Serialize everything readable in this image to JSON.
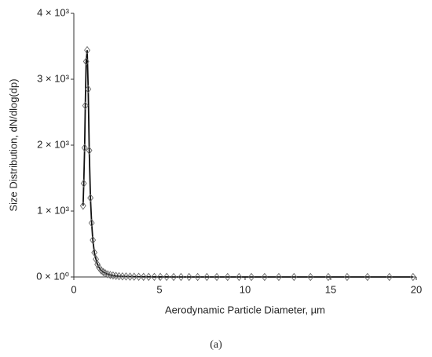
{
  "chart_data": {
    "type": "line",
    "x_label": "Aerodynamic Particle Diameter, µm",
    "y_label": "Size Distribution, dN/dlog(dp)",
    "caption": "(a)",
    "x": [
      0.54,
      0.58,
      0.63,
      0.67,
      0.72,
      0.78,
      0.84,
      0.9,
      0.97,
      1.04,
      1.11,
      1.2,
      1.29,
      1.38,
      1.48,
      1.6,
      1.72,
      1.84,
      1.98,
      2.13,
      2.29,
      2.46,
      2.64,
      2.84,
      3.05,
      3.28,
      3.52,
      3.79,
      4.07,
      4.37,
      4.7,
      5.05,
      5.42,
      5.83,
      6.26,
      6.73,
      7.23,
      7.77,
      8.35,
      8.98,
      9.65,
      10.37,
      11.14,
      11.97,
      12.86,
      13.82,
      14.86,
      15.96,
      17.15,
      18.43,
      19.81
    ],
    "series": [
      {
        "name": "dN/dlog(dp)",
        "color": "#111111",
        "marker_color": "#666666",
        "values": [
          1080,
          1420,
          1960,
          2600,
          3270,
          3440,
          2850,
          1920,
          1200,
          820,
          560,
          370,
          270,
          190,
          140,
          100,
          75,
          55,
          40,
          30,
          22,
          16,
          12,
          9,
          7,
          5,
          4,
          3,
          2,
          2,
          1,
          1,
          1,
          0,
          0,
          0,
          0,
          0,
          0,
          0,
          0,
          0,
          0,
          0,
          0,
          0,
          0,
          0,
          0,
          0,
          0
        ]
      }
    ],
    "xlim": [
      0,
      20
    ],
    "xticks": [
      0,
      5,
      10,
      15,
      20
    ],
    "ylim": [
      0,
      4000
    ],
    "yticks": [
      {
        "value": 0,
        "label": "0 × 10⁰"
      },
      {
        "value": 1000,
        "label": "1 × 10³"
      },
      {
        "value": 2000,
        "label": "2 × 10³"
      },
      {
        "value": 3000,
        "label": "3 × 10³"
      },
      {
        "value": 4000,
        "label": "4 × 10³"
      }
    ],
    "grid": false
  }
}
